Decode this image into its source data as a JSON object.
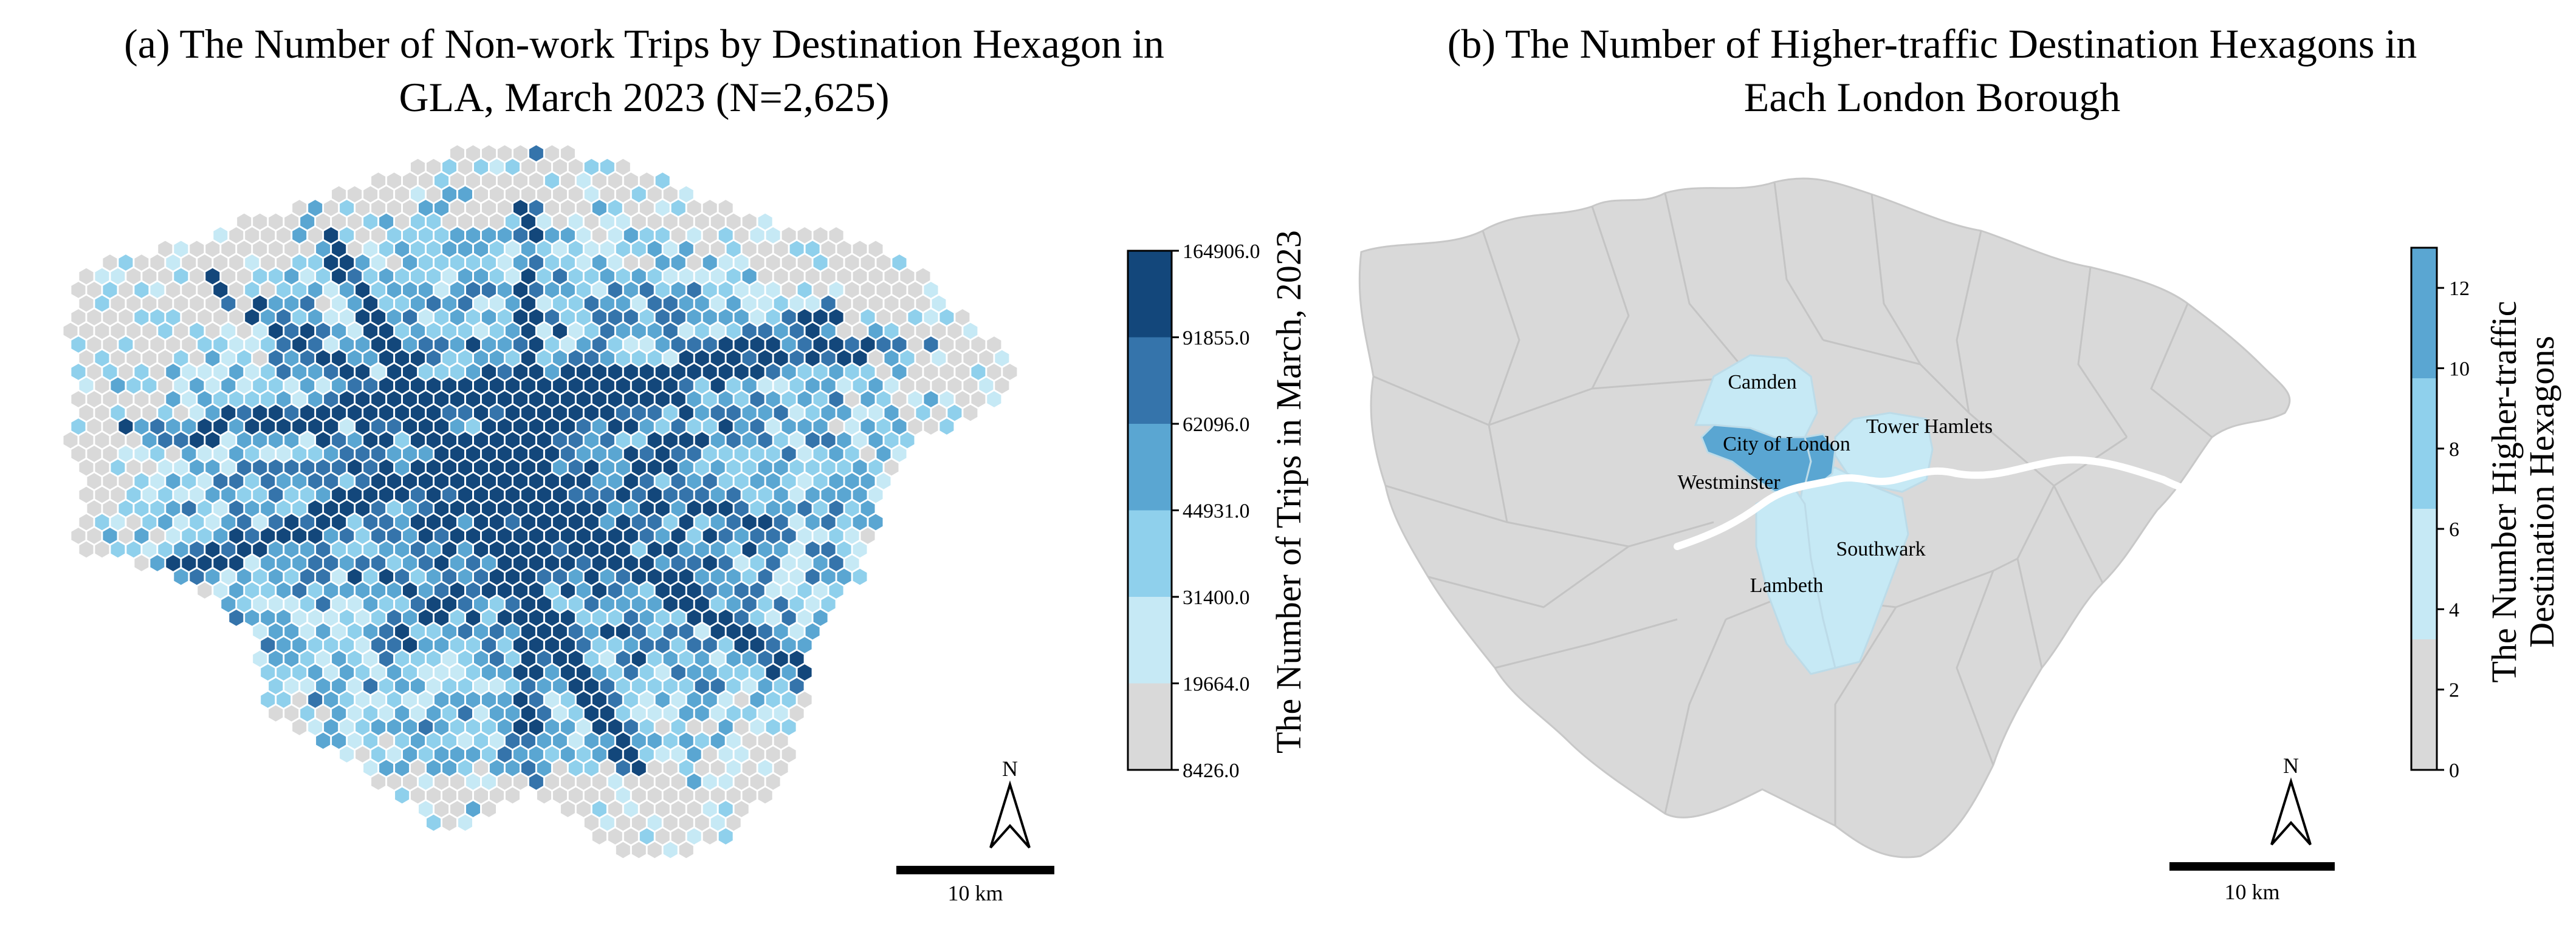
{
  "panel_a": {
    "title_line1": "(a)  The Number of Non-work Trips by Destination Hexagon in",
    "title_line2": "GLA, March 2023 (N=2,625)",
    "colorbar_title": "The Number of Trips in March, 2023",
    "colorbar_ticks": [
      "8426.0",
      "19664.0",
      "31400.0",
      "44931.0",
      "62096.0",
      "91855.0",
      "164906.0"
    ],
    "colors": [
      "#d9d9d9",
      "#c6e9f5",
      "#8fd0ec",
      "#5aa6d2",
      "#3574ab",
      "#13477b"
    ],
    "north_label": "N",
    "scale_label": "10 km"
  },
  "panel_b": {
    "title_line1": "(b) The Number of Higher-traffic Destination Hexagons in",
    "title_line2": "Each London Borough",
    "colorbar_title_line1": "The Number Higher-traffic",
    "colorbar_title_line2": "Destination Hexagons",
    "colorbar_ticks": [
      "0",
      "2",
      "4",
      "6",
      "8",
      "10",
      "12"
    ],
    "colorbar_range": [
      0,
      13
    ],
    "colors": [
      "#d9d9d9",
      "#c6e9f5",
      "#8fd0ec",
      "#5aa6d2"
    ],
    "bounds": [
      0,
      3.25,
      6.5,
      9.75,
      13
    ],
    "boroughs": [
      {
        "name": "Camden",
        "value": 5
      },
      {
        "name": "City of London",
        "value": 13
      },
      {
        "name": "Westminster",
        "value": 12
      },
      {
        "name": "Tower Hamlets",
        "value": 5
      },
      {
        "name": "Southwark",
        "value": 5
      },
      {
        "name": "Lambeth",
        "value": 4
      }
    ],
    "north_label": "N",
    "scale_label": "10 km"
  }
}
